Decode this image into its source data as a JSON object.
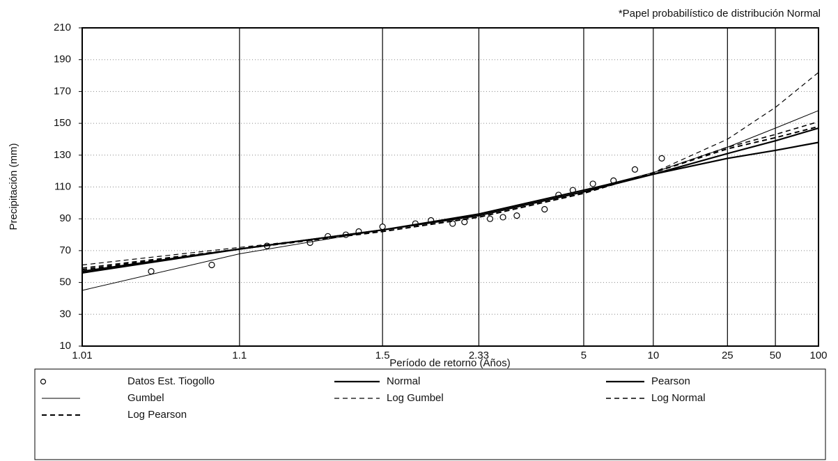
{
  "chart_data": {
    "type": "line",
    "annotation": "*Papel probabilístico de distribución Normal",
    "x_label": "Período de retorno (Años)",
    "y_label": "Precipitación (mm)",
    "x_scale": "normal-probability",
    "xlim": [
      1.01,
      100
    ],
    "xticks": [
      1.01,
      1.1,
      1.5,
      2.33,
      5,
      10,
      25,
      50,
      100
    ],
    "ylim": [
      10,
      210
    ],
    "yticks": [
      10,
      30,
      50,
      70,
      90,
      110,
      130,
      150,
      170,
      190,
      210
    ],
    "grid": true,
    "legend": "bottom",
    "series": [
      {
        "name": "Datos Est. Tiogollo",
        "color": "#000000",
        "style": "marker",
        "width": 1.2,
        "x": [
          1.03,
          1.07,
          1.14,
          1.23,
          1.28,
          1.34,
          1.39,
          1.5,
          1.7,
          1.82,
          2.02,
          2.15,
          2.49,
          2.7,
          2.96,
          3.62,
          4.04,
          4.55,
          5.43,
          6.6,
          8.2,
          11
        ],
        "values": [
          57,
          61,
          73,
          75,
          79,
          80,
          82,
          85,
          87,
          89,
          87,
          88,
          90,
          91,
          92,
          96,
          105,
          108,
          112,
          114,
          121,
          128
        ]
      },
      {
        "name": "Normal",
        "color": "#000000",
        "style": "solid",
        "width": 2.2,
        "x": [
          1.01,
          1.1,
          1.5,
          2.33,
          5,
          10,
          25,
          50,
          100
        ],
        "values": [
          56,
          71,
          83,
          93,
          108,
          118,
          128,
          133,
          138
        ]
      },
      {
        "name": "Pearson",
        "color": "#000000",
        "style": "solid",
        "width": 2.2,
        "x": [
          1.01,
          1.1,
          1.5,
          2.33,
          5,
          10,
          25,
          50,
          100
        ],
        "values": [
          57,
          71,
          83,
          92,
          107,
          118,
          131,
          139,
          147
        ]
      },
      {
        "name": "Gumbel",
        "color": "#000000",
        "style": "solid",
        "width": 1,
        "x": [
          1.01,
          1.1,
          1.5,
          2.33,
          5,
          10,
          25,
          50,
          100
        ],
        "values": [
          45,
          68,
          83,
          93,
          108,
          119,
          135,
          147,
          158
        ]
      },
      {
        "name": "Log Gumbel",
        "color": "#000000",
        "style": "dashed",
        "width": 1.2,
        "x": [
          1.01,
          1.1,
          1.5,
          2.33,
          5,
          10,
          25,
          50,
          100
        ],
        "values": [
          61,
          72,
          82,
          91,
          106,
          119,
          140,
          160,
          182
        ]
      },
      {
        "name": "Log Normal",
        "color": "#000000",
        "style": "dashed",
        "width": 1.6,
        "x": [
          1.01,
          1.1,
          1.5,
          2.33,
          5,
          10,
          25,
          50,
          100
        ],
        "values": [
          59,
          71,
          82,
          91,
          106,
          119,
          135,
          143,
          151
        ]
      },
      {
        "name": "Log Pearson",
        "color": "#000000",
        "style": "dashed",
        "width": 2,
        "x": [
          1.01,
          1.1,
          1.5,
          2.33,
          5,
          10,
          25,
          50,
          100
        ],
        "values": [
          58,
          71,
          82,
          91,
          106,
          119,
          134,
          141,
          148
        ]
      }
    ]
  }
}
